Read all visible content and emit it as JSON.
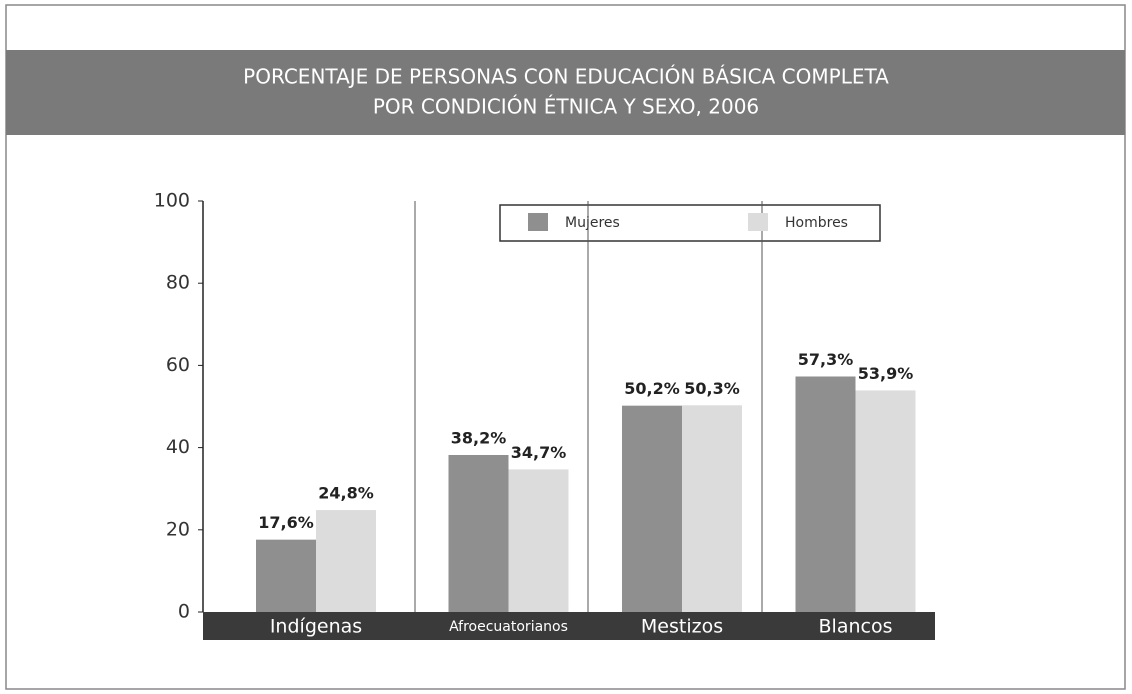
{
  "chart_data": {
    "type": "bar",
    "title": "PORCENTAJE DE PERSONAS CON  EDUCACIÓN BÁSICA COMPLETA",
    "subtitle": "POR CONDICIÓN ÉTNICA Y SEXO, 2006",
    "categories": [
      "Indígenas",
      "Afroecuatorianos",
      "Mestizos",
      "Blancos"
    ],
    "series": [
      {
        "name": "Mujeres",
        "color": "#8f8f8f",
        "values": [
          17.6,
          38.2,
          50.2,
          57.3
        ],
        "value_labels": [
          "17,6%",
          "38,2%",
          "50,2%",
          "57,3%"
        ]
      },
      {
        "name": "Hombres",
        "color": "#dcdcdc",
        "values": [
          24.8,
          34.7,
          50.3,
          53.9
        ],
        "value_labels": [
          "24,8%",
          "34,7%",
          "50,3%",
          "53,9%"
        ]
      }
    ],
    "ylim": [
      0,
      100
    ],
    "yticks": [
      0,
      20,
      40,
      60,
      80,
      100
    ]
  }
}
